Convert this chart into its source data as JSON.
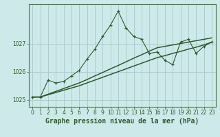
{
  "title": "Graphe pression niveau de la mer (hPa)",
  "background_color": "#cee9ea",
  "grid_color": "#a8c8ca",
  "line_color": "#2d5a2d",
  "x_values": [
    0,
    1,
    2,
    3,
    4,
    5,
    6,
    7,
    8,
    9,
    10,
    11,
    12,
    13,
    14,
    15,
    16,
    17,
    18,
    19,
    20,
    21,
    22,
    23
  ],
  "y_main": [
    1025.1,
    1025.1,
    1025.7,
    1025.6,
    1025.65,
    1025.85,
    1026.05,
    1026.45,
    1026.8,
    1027.25,
    1027.65,
    1028.15,
    1027.55,
    1027.25,
    1027.15,
    1026.65,
    1026.7,
    1026.4,
    1026.25,
    1027.05,
    1027.15,
    1026.65,
    1026.9,
    1027.05
  ],
  "y_line2": [
    1025.1,
    1025.1,
    1025.2,
    1025.3,
    1025.4,
    1025.5,
    1025.6,
    1025.72,
    1025.85,
    1025.97,
    1026.1,
    1026.22,
    1026.35,
    1026.48,
    1026.6,
    1026.73,
    1026.85,
    1026.9,
    1026.95,
    1027.0,
    1027.05,
    1027.1,
    1027.15,
    1027.2
  ],
  "y_line3": [
    1025.1,
    1025.1,
    1025.18,
    1025.26,
    1025.34,
    1025.42,
    1025.5,
    1025.6,
    1025.7,
    1025.8,
    1025.9,
    1026.0,
    1026.1,
    1026.2,
    1026.3,
    1026.4,
    1026.5,
    1026.57,
    1026.65,
    1026.72,
    1026.8,
    1026.87,
    1026.95,
    1027.05
  ],
  "ylim": [
    1024.75,
    1028.4
  ],
  "yticks": [
    1025,
    1026,
    1027
  ],
  "xlim": [
    -0.5,
    23.5
  ],
  "xticks": [
    0,
    1,
    2,
    3,
    4,
    5,
    6,
    7,
    8,
    9,
    10,
    11,
    12,
    13,
    14,
    15,
    16,
    17,
    18,
    19,
    20,
    21,
    22,
    23
  ],
  "title_fontsize": 7,
  "tick_fontsize": 5.5,
  "spine_color": "#4a7a4a"
}
